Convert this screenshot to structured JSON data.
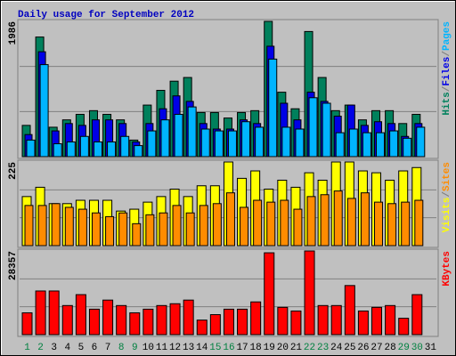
{
  "chart_data": [
    {
      "type": "bar",
      "title": "Daily usage for September 2012",
      "ylim": [
        0,
        1986
      ],
      "yticks": [
        1986
      ],
      "legend_separator": "/",
      "series": [
        {
          "name": "Hits",
          "color": "#00805c",
          "values": [
            459,
            1756,
            432,
            540,
            621,
            675,
            621,
            540,
            243,
            757,
            973,
            1108,
            1162,
            648,
            648,
            567,
            648,
            675,
            1986,
            946,
            703,
            1837,
            1162,
            675,
            757,
            540,
            675,
            675,
            486,
            621,
            null
          ]
        },
        {
          "name": "Files",
          "color": "#0000e6",
          "values": [
            324,
            1540,
            378,
            486,
            459,
            540,
            540,
            486,
            216,
            486,
            703,
            892,
            811,
            486,
            405,
            405,
            540,
            486,
            1621,
            784,
            540,
            946,
            811,
            594,
            757,
            459,
            513,
            486,
            297,
            486,
            null
          ]
        },
        {
          "name": "Pages",
          "color": "#00b4ff",
          "values": [
            243,
            1351,
            189,
            216,
            297,
            216,
            216,
            297,
            162,
            378,
            540,
            621,
            730,
            405,
            378,
            378,
            513,
            432,
            1432,
            432,
            405,
            865,
            784,
            351,
            405,
            351,
            351,
            378,
            270,
            432,
            null
          ]
        }
      ]
    },
    {
      "type": "bar",
      "ylim": [
        0,
        225
      ],
      "yticks": [
        225
      ],
      "legend_separator": "/",
      "series": [
        {
          "name": "Visits",
          "color": "#ffff00",
          "values": [
            132,
            157,
            113,
            113,
            122,
            122,
            122,
            93,
            98,
            117,
            132,
            152,
            132,
            161,
            161,
            225,
            181,
            201,
            152,
            176,
            157,
            196,
            176,
            225,
            225,
            201,
            196,
            176,
            201,
            210,
            null
          ]
        },
        {
          "name": "Sites",
          "color": "#ff8c00",
          "values": [
            108,
            108,
            113,
            103,
            98,
            88,
            78,
            88,
            59,
            83,
            88,
            108,
            88,
            108,
            113,
            142,
            103,
            122,
            117,
            122,
            98,
            132,
            137,
            147,
            127,
            142,
            117,
            113,
            117,
            122,
            null
          ]
        }
      ]
    },
    {
      "type": "bar",
      "ylim": [
        0,
        28357
      ],
      "yticks": [
        28357
      ],
      "categories": [
        "1",
        "2",
        "3",
        "4",
        "5",
        "6",
        "7",
        "8",
        "9",
        "10",
        "11",
        "12",
        "13",
        "14",
        "15",
        "16",
        "17",
        "18",
        "19",
        "20",
        "21",
        "22",
        "23",
        "24",
        "25",
        "26",
        "27",
        "28",
        "29",
        "30",
        "31"
      ],
      "category_colors": [
        "#008040",
        "#008040",
        "#000000",
        "#000000",
        "#000000",
        "#000000",
        "#000000",
        "#008040",
        "#008040",
        "#000000",
        "#000000",
        "#000000",
        "#000000",
        "#000000",
        "#008040",
        "#008040",
        "#000000",
        "#000000",
        "#000000",
        "#000000",
        "#000000",
        "#008040",
        "#008040",
        "#000000",
        "#000000",
        "#000000",
        "#000000",
        "#000000",
        "#008040",
        "#008040",
        "#000000"
      ],
      "series": [
        {
          "name": "KBytes",
          "color": "#ff0000",
          "values": [
            7397,
            14794,
            14794,
            9863,
            13561,
            8630,
            11712,
            9863,
            7397,
            8630,
            9863,
            10479,
            11712,
            4931,
            6780,
            8630,
            8630,
            11095,
            27740,
            9246,
            8013,
            28357,
            9863,
            9863,
            16643,
            8013,
            9246,
            9863,
            5548,
            13561,
            null
          ]
        }
      ]
    }
  ]
}
